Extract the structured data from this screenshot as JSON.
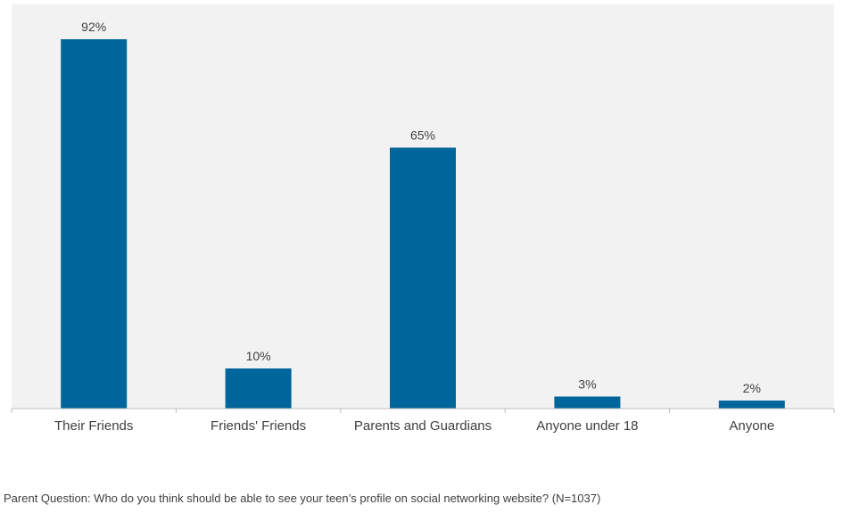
{
  "chart_data": {
    "type": "bar",
    "categories": [
      "Their Friends",
      "Friends' Friends",
      "Parents and Guardians",
      "Anyone under 18",
      "Anyone"
    ],
    "values": [
      92,
      10,
      65,
      3,
      2
    ],
    "value_labels": [
      "92%",
      "10%",
      "65%",
      "3%",
      "2%"
    ],
    "unit": "%",
    "ylim": [
      0,
      100
    ],
    "grid": false,
    "legend": "none",
    "bar_color": "#00659A",
    "plot_background": "#F2F2F2",
    "axis_color": "#BFBFBF"
  },
  "footnote": "Parent Question: Who do you think should be able to see your teen’s profile on social networking website? (N=1037)"
}
